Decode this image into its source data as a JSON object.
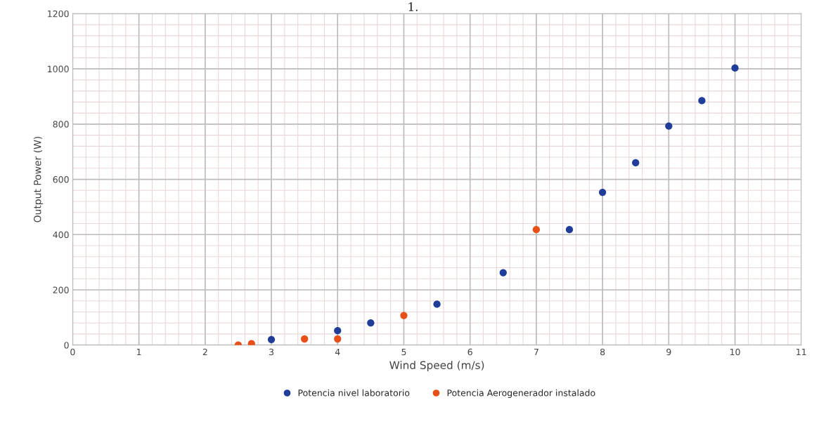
{
  "chart_data": {
    "type": "scatter",
    "title": "1.",
    "xlabel": "Wind Speed (m/s)",
    "ylabel": "Output Power (W)",
    "series": [
      {
        "name": "Potencia nivel laboratorio",
        "color": "#1f3d99",
        "x": [
          3,
          4,
          4.5,
          5.5,
          6.5,
          7.5,
          8,
          8.5,
          9,
          9.5,
          10
        ],
        "values": [
          20,
          52,
          80,
          148,
          262,
          418,
          553,
          660,
          793,
          885,
          1003
        ]
      },
      {
        "name": "Potencia Aerogenerador instalado",
        "color": "#e8501a",
        "x": [
          2.5,
          2.7,
          3.5,
          4,
          5,
          7
        ],
        "values": [
          0,
          5,
          22,
          22,
          107,
          418
        ]
      }
    ],
    "xlim": [
      0,
      11
    ],
    "xticks": [
      0,
      1,
      2,
      3,
      4,
      5,
      6,
      7,
      8,
      9,
      10,
      11
    ],
    "ylim": [
      0,
      1200
    ],
    "yticks": [
      0,
      200,
      400,
      600,
      800,
      1000,
      1200
    ],
    "grid": true,
    "legend": "bottom",
    "marker": "circle"
  }
}
